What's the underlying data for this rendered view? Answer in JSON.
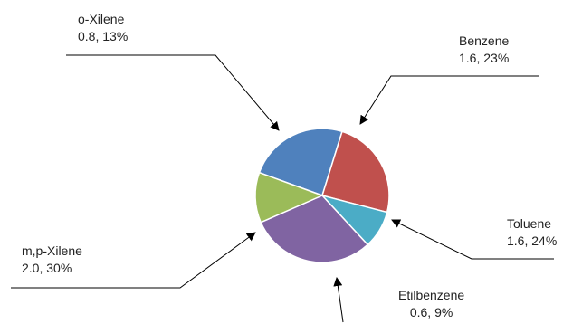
{
  "chart_data": {
    "type": "pie",
    "title": "",
    "slices": [
      {
        "name": "Benzene",
        "value": 1.6,
        "percent": "23%",
        "color": "#4F81BD",
        "value_label": "1.6, 23%"
      },
      {
        "name": "Toluene",
        "value": 1.6,
        "percent": "24%",
        "color": "#C0504D",
        "value_label": "1.6, 24%"
      },
      {
        "name": "Etilbenzene",
        "value": 0.6,
        "percent": "9%",
        "color": "#4BACC6",
        "value_label": "0.6, 9%"
      },
      {
        "name": "m,p-Xilene",
        "value": 2.0,
        "percent": "30%",
        "color": "#8064A2",
        "value_label": "2.0, 30%"
      },
      {
        "name": "o-Xilene",
        "value": 0.8,
        "percent": "13%",
        "color": "#9BBB59",
        "value_label": "0.8, 13%"
      }
    ]
  }
}
